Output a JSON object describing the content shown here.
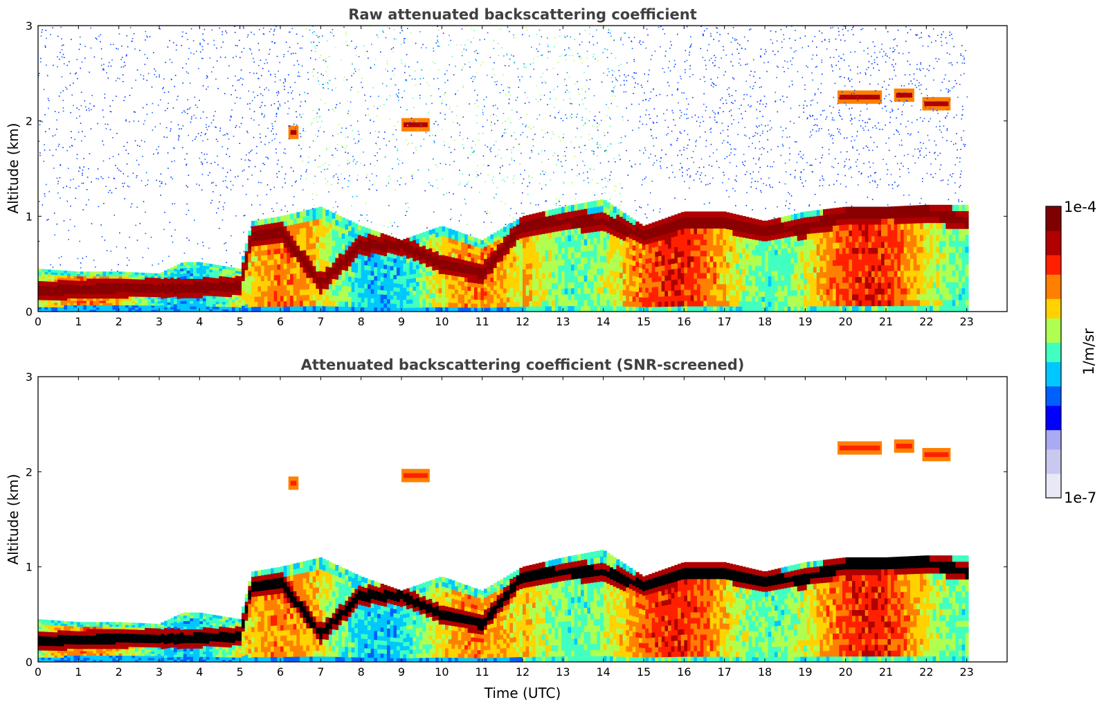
{
  "chart_data": [
    {
      "type": "heatmap",
      "title": "Raw attenuated backscattering coefficient",
      "xlabel": "",
      "ylabel": "Altitude (km)",
      "xlim": [
        0,
        24
      ],
      "ylim": [
        0,
        3
      ],
      "x_ticks": [
        "0",
        "1",
        "2",
        "3",
        "4",
        "5",
        "6",
        "7",
        "8",
        "9",
        "10",
        "11",
        "12",
        "13",
        "14",
        "15",
        "16",
        "17",
        "18",
        "19",
        "20",
        "21",
        "22",
        "23"
      ],
      "y_ticks": [
        "0",
        "1",
        "2",
        "3"
      ],
      "data_end_time": 23,
      "features": {
        "boundary_layer_top_km": [
          [
            0,
            0.45
          ],
          [
            1,
            0.42
          ],
          [
            2,
            0.42
          ],
          [
            3,
            0.4
          ],
          [
            3.6,
            0.52
          ],
          [
            4,
            0.52
          ],
          [
            5,
            0.45
          ],
          [
            5.3,
            0.95
          ],
          [
            6,
            1.0
          ],
          [
            7,
            1.1
          ],
          [
            8,
            0.9
          ],
          [
            9,
            0.75
          ],
          [
            10,
            0.9
          ],
          [
            11,
            0.75
          ],
          [
            12,
            1.0
          ],
          [
            13,
            1.1
          ],
          [
            14,
            1.18
          ],
          [
            15,
            0.9
          ],
          [
            16,
            1.05
          ],
          [
            17,
            1.05
          ],
          [
            18,
            0.95
          ],
          [
            19,
            1.05
          ],
          [
            20,
            1.1
          ],
          [
            21,
            1.1
          ],
          [
            22,
            1.12
          ],
          [
            23,
            1.12
          ]
        ],
        "aerosol_layer_peak_km": [
          [
            0,
            0.22
          ],
          [
            2,
            0.25
          ],
          [
            3.6,
            0.25
          ],
          [
            5,
            0.27
          ],
          [
            5.3,
            0.8
          ],
          [
            6,
            0.85
          ],
          [
            7,
            0.3
          ],
          [
            8,
            0.7
          ],
          [
            9,
            0.7
          ],
          [
            10,
            0.5
          ],
          [
            11,
            0.4
          ],
          [
            12,
            0.9
          ],
          [
            13,
            0.95
          ],
          [
            14,
            0.95
          ],
          [
            15,
            0.8
          ],
          [
            16,
            0.95
          ],
          [
            17,
            0.95
          ],
          [
            18,
            0.85
          ],
          [
            19,
            0.88
          ],
          [
            20,
            1.02
          ],
          [
            21,
            1.05
          ],
          [
            22,
            1.05
          ],
          [
            23,
            0.95
          ]
        ],
        "cloud_patches": [
          {
            "t_start": 6.2,
            "t_end": 6.45,
            "alt_km": 1.88
          },
          {
            "t_start": 9.0,
            "t_end": 9.7,
            "alt_km": 1.96
          },
          {
            "t_start": 19.8,
            "t_end": 20.9,
            "alt_km": 2.25
          },
          {
            "t_start": 21.2,
            "t_end": 21.7,
            "alt_km": 2.27
          },
          {
            "t_start": 21.9,
            "t_end": 22.6,
            "alt_km": 2.18
          }
        ]
      }
    },
    {
      "type": "heatmap",
      "title": "Attenuated backscattering coefficient (SNR-screened)",
      "xlabel": "Time (UTC)",
      "ylabel": "Altitude (km)",
      "xlim": [
        0,
        24
      ],
      "ylim": [
        0,
        3
      ],
      "x_ticks": [
        "0",
        "1",
        "2",
        "3",
        "4",
        "5",
        "6",
        "7",
        "8",
        "9",
        "10",
        "11",
        "12",
        "13",
        "14",
        "15",
        "16",
        "17",
        "18",
        "19",
        "20",
        "21",
        "22",
        "23"
      ],
      "y_ticks": [
        "0",
        "1",
        "2",
        "3"
      ],
      "data_end_time": 23,
      "screened": true,
      "saturated_values_shown_black": true
    }
  ],
  "colorbar": {
    "label": "1/m/sr",
    "min_label": "1e-7",
    "max_label": "1e-4",
    "scale": "log",
    "colormap": "jet",
    "colors": [
      "#e8e8f6",
      "#c9c9ef",
      "#aaaaf2",
      "#0000ff",
      "#0060ff",
      "#00c8ff",
      "#40ffc0",
      "#b0ff50",
      "#ffd200",
      "#ff8000",
      "#ff2000",
      "#b00000",
      "#7f0000"
    ]
  }
}
